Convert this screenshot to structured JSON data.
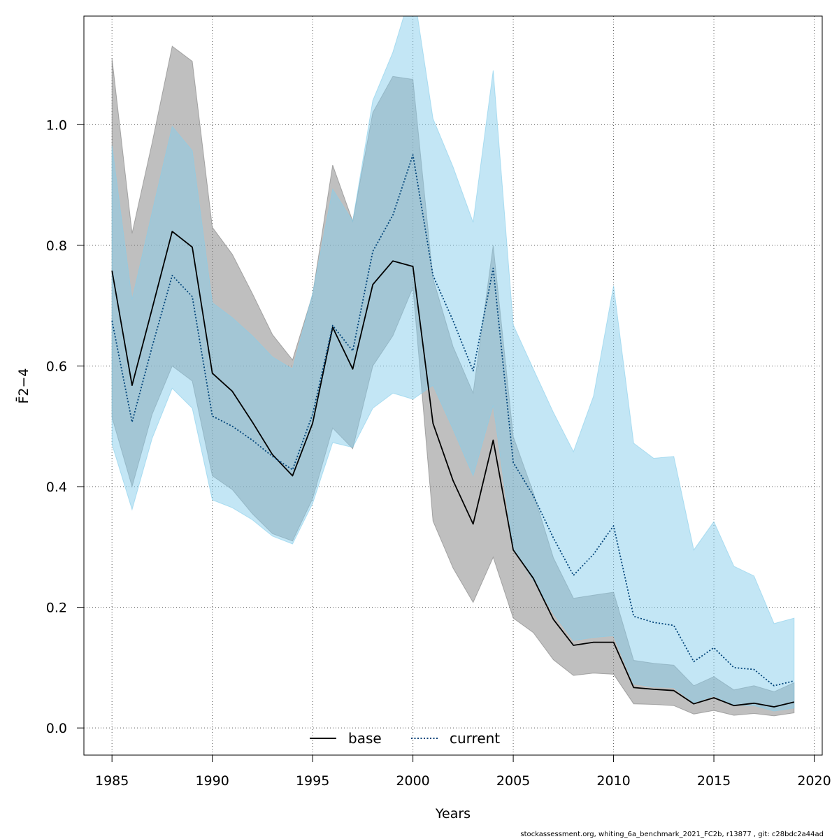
{
  "footer": "stockassessment.org, whiting_6a_benchmark_2021_FC2b, r13877 , git: c28bdc2a44ad",
  "chart_data": {
    "type": "line",
    "xlabel": "Years",
    "ylabel": "F̄2−4",
    "xlim": [
      1983.6,
      2020.4
    ],
    "ylim": [
      -0.045,
      1.18
    ],
    "grid": true,
    "legend_position": "bottom-center",
    "x_ticks": [
      "1985",
      "1990",
      "1995",
      "2000",
      "2005",
      "2010",
      "2015",
      "2020"
    ],
    "y_ticks": [
      "0.0",
      "0.2",
      "0.4",
      "0.6",
      "0.8",
      "1.0"
    ],
    "x": [
      1985,
      1986,
      1987,
      1988,
      1989,
      1990,
      1991,
      1992,
      1993,
      1994,
      1995,
      1996,
      1997,
      1998,
      1999,
      2000,
      2001,
      2002,
      2003,
      2004,
      2005,
      2006,
      2007,
      2008,
      2009,
      2010,
      2011,
      2012,
      2013,
      2014,
      2015,
      2016,
      2017,
      2018,
      2019
    ],
    "series": [
      {
        "name": "base",
        "color": "#000000",
        "band_color": "#7f7f7f",
        "dash": "solid",
        "values": [
          0.758,
          0.568,
          0.695,
          0.823,
          0.797,
          0.588,
          0.558,
          0.507,
          0.453,
          0.418,
          0.505,
          0.664,
          0.595,
          0.735,
          0.774,
          0.765,
          0.505,
          0.41,
          0.338,
          0.477,
          0.295,
          0.248,
          0.18,
          0.137,
          0.142,
          0.142,
          0.067,
          0.064,
          0.062,
          0.04,
          0.05,
          0.037,
          0.041,
          0.035,
          0.043
        ],
        "lower": [
          0.515,
          0.4,
          0.52,
          0.6,
          0.575,
          0.418,
          0.395,
          0.355,
          0.322,
          0.31,
          0.38,
          0.497,
          0.463,
          0.6,
          0.65,
          0.73,
          0.343,
          0.265,
          0.208,
          0.283,
          0.182,
          0.158,
          0.113,
          0.087,
          0.091,
          0.089,
          0.04,
          0.039,
          0.037,
          0.023,
          0.029,
          0.021,
          0.024,
          0.02,
          0.025
        ],
        "upper": [
          1.11,
          0.82,
          0.97,
          1.13,
          1.105,
          0.83,
          0.785,
          0.72,
          0.652,
          0.61,
          0.718,
          0.933,
          0.84,
          1.02,
          1.08,
          1.075,
          0.745,
          0.632,
          0.555,
          0.8,
          0.483,
          0.39,
          0.282,
          0.215,
          0.22,
          0.225,
          0.112,
          0.107,
          0.104,
          0.07,
          0.085,
          0.063,
          0.07,
          0.06,
          0.075
        ]
      },
      {
        "name": "current",
        "color": "#00447a",
        "band_color": "#87ceeb",
        "dash": "dotted",
        "values": [
          0.675,
          0.507,
          0.632,
          0.75,
          0.715,
          0.517,
          0.5,
          0.477,
          0.45,
          0.428,
          0.52,
          0.667,
          0.625,
          0.79,
          0.85,
          0.95,
          0.75,
          0.675,
          0.592,
          0.762,
          0.44,
          0.385,
          0.315,
          0.253,
          0.288,
          0.335,
          0.185,
          0.175,
          0.17,
          0.11,
          0.133,
          0.1,
          0.097,
          0.07,
          0.078
        ],
        "lower": [
          0.47,
          0.362,
          0.48,
          0.563,
          0.53,
          0.378,
          0.365,
          0.345,
          0.318,
          0.305,
          0.372,
          0.473,
          0.465,
          0.53,
          0.555,
          0.545,
          0.568,
          0.495,
          0.418,
          0.535,
          0.297,
          0.245,
          0.19,
          0.145,
          0.15,
          0.153,
          0.073,
          0.068,
          0.067,
          0.042,
          0.053,
          0.038,
          0.037,
          0.028,
          0.033
        ],
        "upper": [
          0.965,
          0.71,
          0.855,
          0.997,
          0.957,
          0.705,
          0.68,
          0.65,
          0.615,
          0.595,
          0.72,
          0.893,
          0.84,
          1.04,
          1.12,
          1.23,
          1.01,
          0.93,
          0.838,
          1.09,
          0.668,
          0.595,
          0.523,
          0.458,
          0.55,
          0.733,
          0.472,
          0.447,
          0.45,
          0.295,
          0.342,
          0.268,
          0.252,
          0.173,
          0.182
        ]
      }
    ]
  }
}
